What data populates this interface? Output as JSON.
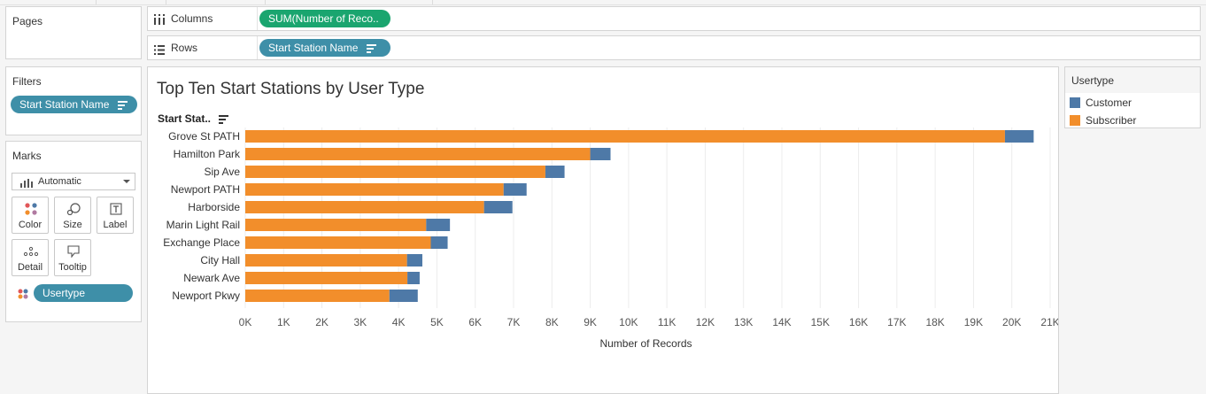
{
  "cards": {
    "pages": "Pages",
    "filters": "Filters",
    "marks": "Marks"
  },
  "filters": {
    "pill": "Start Station Name"
  },
  "marks": {
    "type": "Automatic",
    "buttons": [
      "Color",
      "Size",
      "Label",
      "Detail",
      "Tooltip"
    ],
    "color_pill": "Usertype"
  },
  "shelves": {
    "columns_label": "Columns",
    "columns_pill": "SUM(Number of Reco..",
    "rows_label": "Rows",
    "rows_pill": "Start Station Name"
  },
  "legend": {
    "title": "Usertype",
    "items": [
      {
        "label": "Customer",
        "color": "#4e79a7"
      },
      {
        "label": "Subscriber",
        "color": "#f28e2b"
      }
    ]
  },
  "chart_data": {
    "type": "bar",
    "orientation": "horizontal",
    "stacked": true,
    "title": "Top Ten Start Stations by User Type",
    "row_header": "Start Stat..",
    "xlabel": "Number of Records",
    "xlim": [
      0,
      21000
    ],
    "xticks": [
      "0K",
      "1K",
      "2K",
      "3K",
      "4K",
      "5K",
      "6K",
      "7K",
      "8K",
      "9K",
      "10K",
      "11K",
      "12K",
      "13K",
      "14K",
      "15K",
      "16K",
      "17K",
      "18K",
      "19K",
      "20K",
      "21K"
    ],
    "categories": [
      "Grove St PATH",
      "Hamilton Park",
      "Sip Ave",
      "Newport PATH",
      "Harborside",
      "Marin Light Rail",
      "Exchange Place",
      "City Hall",
      "Newark Ave",
      "Newport Pkwy"
    ],
    "series": [
      {
        "name": "Subscriber",
        "color": "#f28e2b",
        "values": [
          19820,
          9000,
          7830,
          6740,
          6230,
          4720,
          4840,
          4220,
          4230,
          3760
        ]
      },
      {
        "name": "Customer",
        "color": "#4e79a7",
        "values": [
          750,
          530,
          500,
          600,
          740,
          620,
          440,
          400,
          320,
          740
        ]
      }
    ]
  }
}
